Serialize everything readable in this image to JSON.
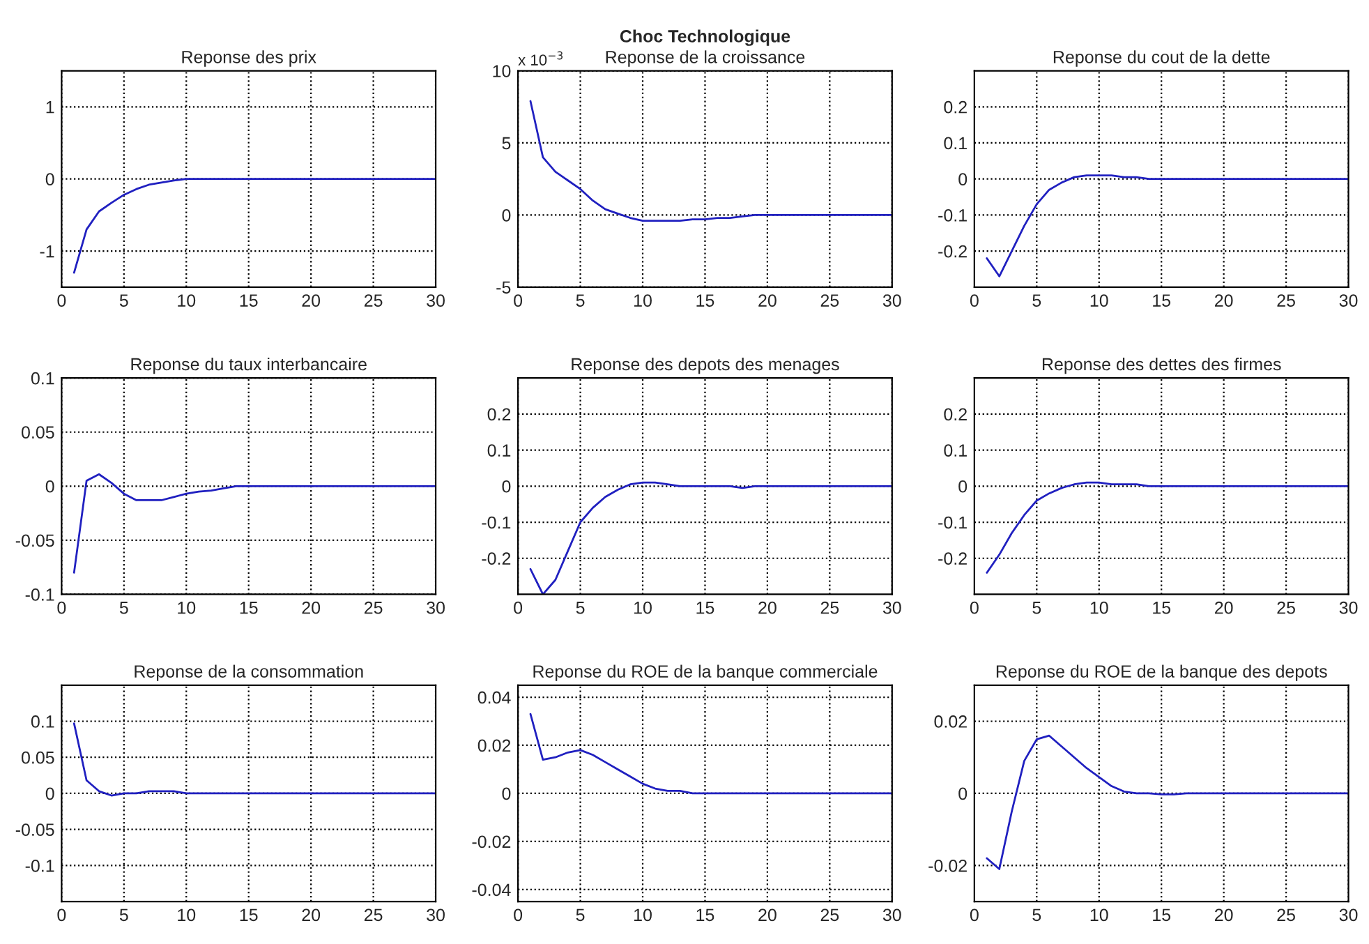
{
  "chart_data": [
    {
      "type": "line",
      "title": "Reponse des prix",
      "x": [
        1,
        2,
        3,
        4,
        5,
        6,
        7,
        8,
        9,
        10,
        11,
        12,
        13,
        14,
        15,
        16,
        17,
        18,
        19,
        20,
        21,
        22,
        23,
        24,
        25,
        26,
        27,
        28,
        29,
        30
      ],
      "series": [
        {
          "color": "#2020c0",
          "values": [
            -1.3,
            -0.7,
            -0.45,
            -0.33,
            -0.22,
            -0.14,
            -0.08,
            -0.05,
            -0.02,
            0,
            0,
            0,
            0,
            0,
            0,
            0,
            0,
            0,
            0,
            0,
            0,
            0,
            0,
            0,
            0,
            0,
            0,
            0,
            0,
            0
          ]
        }
      ],
      "xlim": [
        0,
        30
      ],
      "xticks": [
        0,
        5,
        10,
        15,
        20,
        25,
        30
      ],
      "ylim": [
        -1.5,
        1.5
      ],
      "yticks": [
        -1,
        0,
        1
      ],
      "grid": true,
      "line_style": "solid"
    },
    {
      "type": "line",
      "title": "Choc Technologique",
      "subtitle": "Reponse de la croissance",
      "annotations": [
        "x 10$^{−3}$"
      ],
      "x": [
        1,
        2,
        3,
        4,
        5,
        6,
        7,
        8,
        9,
        10,
        11,
        12,
        13,
        14,
        15,
        16,
        17,
        18,
        19,
        20,
        21,
        22,
        23,
        24,
        25,
        26,
        27,
        28,
        29,
        30
      ],
      "series": [
        {
          "color": "#2020c0",
          "values": [
            7.9,
            4,
            3,
            2.4,
            1.8,
            1,
            0.4,
            0.1,
            -0.2,
            -0.4,
            -0.4,
            -0.4,
            -0.4,
            -0.3,
            -0.3,
            -0.2,
            -0.2,
            -0.1,
            0,
            0,
            0,
            0,
            0,
            0,
            0,
            0,
            0,
            0,
            0,
            0
          ]
        }
      ],
      "xlim": [
        0,
        30
      ],
      "xticks": [
        0,
        5,
        10,
        15,
        20,
        25,
        30
      ],
      "ylim": [
        -5,
        10
      ],
      "yticks": [
        -5,
        0,
        5,
        10
      ],
      "grid": true,
      "line_style": "solid"
    },
    {
      "type": "line",
      "title": "Reponse du cout de la dette",
      "x": [
        1,
        2,
        3,
        4,
        5,
        6,
        7,
        8,
        9,
        10,
        11,
        12,
        13,
        14,
        15,
        16,
        17,
        18,
        19,
        20,
        21,
        22,
        23,
        24,
        25,
        26,
        27,
        28,
        29,
        30
      ],
      "series": [
        {
          "color": "#2020c0",
          "values": [
            -0.22,
            -0.27,
            -0.2,
            -0.13,
            -0.07,
            -0.03,
            -0.01,
            0.005,
            0.01,
            0.01,
            0.01,
            0.005,
            0.005,
            0,
            0,
            0,
            0,
            0,
            0,
            0,
            0,
            0,
            0,
            0,
            0,
            0,
            0,
            0,
            0,
            0
          ]
        }
      ],
      "xlim": [
        0,
        30
      ],
      "xticks": [
        0,
        5,
        10,
        15,
        20,
        25,
        30
      ],
      "ylim": [
        -0.3,
        0.3
      ],
      "yticks": [
        -0.2,
        -0.1,
        0,
        0.1,
        0.2
      ],
      "grid": true,
      "line_style": "solid"
    },
    {
      "type": "line",
      "title": "Reponse du taux interbancaire",
      "x": [
        1,
        2,
        3,
        4,
        5,
        6,
        7,
        8,
        9,
        10,
        11,
        12,
        13,
        14,
        15,
        16,
        17,
        18,
        19,
        20,
        21,
        22,
        23,
        24,
        25,
        26,
        27,
        28,
        29,
        30
      ],
      "series": [
        {
          "color": "#2020c0",
          "values": [
            -0.08,
            0.005,
            0.011,
            0.003,
            -0.007,
            -0.013,
            -0.013,
            -0.013,
            -0.01,
            -0.007,
            -0.005,
            -0.004,
            -0.002,
            0,
            0,
            0,
            0,
            0,
            0,
            0,
            0,
            0,
            0,
            0,
            0,
            0,
            0,
            0,
            0,
            0
          ]
        }
      ],
      "xlim": [
        0,
        30
      ],
      "xticks": [
        0,
        5,
        10,
        15,
        20,
        25,
        30
      ],
      "ylim": [
        -0.1,
        0.1
      ],
      "yticks": [
        -0.1,
        -0.05,
        0,
        0.05,
        0.1
      ],
      "grid": true,
      "line_style": "solid"
    },
    {
      "type": "line",
      "title": "Reponse des depots des menages",
      "x": [
        1,
        2,
        3,
        4,
        5,
        6,
        7,
        8,
        9,
        10,
        11,
        12,
        13,
        14,
        15,
        16,
        17,
        18,
        19,
        20,
        21,
        22,
        23,
        24,
        25,
        26,
        27,
        28,
        29,
        30
      ],
      "series": [
        {
          "color": "#2020c0",
          "values": [
            -0.23,
            -0.3,
            -0.26,
            -0.18,
            -0.1,
            -0.06,
            -0.03,
            -0.01,
            0.005,
            0.01,
            0.01,
            0.005,
            0,
            0,
            0,
            0,
            0,
            -0.005,
            0,
            0,
            0,
            0,
            0,
            0,
            0,
            0,
            0,
            0,
            0,
            0
          ]
        }
      ],
      "xlim": [
        0,
        30
      ],
      "xticks": [
        0,
        5,
        10,
        15,
        20,
        25,
        30
      ],
      "ylim": [
        -0.3,
        0.3
      ],
      "yticks": [
        -0.2,
        -0.1,
        0,
        0.1,
        0.2
      ],
      "grid": true,
      "line_style": "solid"
    },
    {
      "type": "line",
      "title": "Reponse des dettes des firmes",
      "x": [
        1,
        2,
        3,
        4,
        5,
        6,
        7,
        8,
        9,
        10,
        11,
        12,
        13,
        14,
        15,
        16,
        17,
        18,
        19,
        20,
        21,
        22,
        23,
        24,
        25,
        26,
        27,
        28,
        29,
        30
      ],
      "series": [
        {
          "color": "#2020c0",
          "values": [
            -0.24,
            -0.19,
            -0.13,
            -0.08,
            -0.04,
            -0.02,
            -0.005,
            0.005,
            0.01,
            0.01,
            0.005,
            0.005,
            0.005,
            0,
            0,
            0,
            0,
            0,
            0,
            0,
            0,
            0,
            0,
            0,
            0,
            0,
            0,
            0,
            0,
            0
          ]
        }
      ],
      "xlim": [
        0,
        30
      ],
      "xticks": [
        0,
        5,
        10,
        15,
        20,
        25,
        30
      ],
      "ylim": [
        -0.3,
        0.3
      ],
      "yticks": [
        -0.2,
        -0.1,
        0,
        0.1,
        0.2
      ],
      "grid": true,
      "line_style": "solid"
    },
    {
      "type": "line",
      "title": "Reponse de la consommation",
      "x": [
        1,
        2,
        3,
        4,
        5,
        6,
        7,
        8,
        9,
        10,
        11,
        12,
        13,
        14,
        15,
        16,
        17,
        18,
        19,
        20,
        21,
        22,
        23,
        24,
        25,
        26,
        27,
        28,
        29,
        30
      ],
      "series": [
        {
          "color": "#2020c0",
          "values": [
            0.097,
            0.018,
            0.003,
            -0.003,
            0,
            0,
            0.003,
            0.003,
            0.003,
            0,
            0,
            0,
            0,
            0,
            0,
            0,
            0,
            0,
            0,
            0,
            0,
            0,
            0,
            0,
            0,
            0,
            0,
            0,
            0,
            0
          ]
        }
      ],
      "xlim": [
        0,
        30
      ],
      "xticks": [
        0,
        5,
        10,
        15,
        20,
        25,
        30
      ],
      "ylim": [
        -0.15,
        0.15
      ],
      "yticks": [
        -0.1,
        -0.05,
        0,
        0.05,
        0.1
      ],
      "grid": true,
      "line_style": "solid"
    },
    {
      "type": "line",
      "title": "Reponse du ROE de la banque commerciale",
      "x": [
        1,
        2,
        3,
        4,
        5,
        6,
        7,
        8,
        9,
        10,
        11,
        12,
        13,
        14,
        15,
        16,
        17,
        18,
        19,
        20,
        21,
        22,
        23,
        24,
        25,
        26,
        27,
        28,
        29,
        30
      ],
      "series": [
        {
          "color": "#2020c0",
          "values": [
            0.033,
            0.014,
            0.015,
            0.017,
            0.018,
            0.016,
            0.013,
            0.01,
            0.007,
            0.004,
            0.002,
            0.001,
            0.001,
            0,
            0,
            0,
            0,
            0,
            0,
            0,
            0,
            0,
            0,
            0,
            0,
            0,
            0,
            0,
            0,
            0
          ]
        }
      ],
      "xlim": [
        0,
        30
      ],
      "xticks": [
        0,
        5,
        10,
        15,
        20,
        25,
        30
      ],
      "ylim": [
        -0.045,
        0.045
      ],
      "yticks": [
        -0.04,
        -0.02,
        0,
        0.02,
        0.04
      ],
      "grid": true,
      "line_style": "solid"
    },
    {
      "type": "line",
      "title": "Reponse du ROE de la banque des depots",
      "x": [
        1,
        2,
        3,
        4,
        5,
        6,
        7,
        8,
        9,
        10,
        11,
        12,
        13,
        14,
        15,
        16,
        17,
        18,
        19,
        20,
        21,
        22,
        23,
        24,
        25,
        26,
        27,
        28,
        29,
        30
      ],
      "series": [
        {
          "color": "#2020c0",
          "values": [
            -0.018,
            -0.021,
            -0.005,
            0.009,
            0.015,
            0.016,
            0.013,
            0.01,
            0.007,
            0.0045,
            0.002,
            0.0005,
            0,
            0,
            -0.0003,
            -0.0003,
            0,
            0,
            0,
            0,
            0,
            0,
            0,
            0,
            0,
            0,
            0,
            0,
            0,
            0
          ]
        }
      ],
      "xlim": [
        0,
        30
      ],
      "xticks": [
        0,
        5,
        10,
        15,
        20,
        25,
        30
      ],
      "ylim": [
        -0.03,
        0.03
      ],
      "yticks": [
        -0.02,
        0,
        0.02
      ],
      "grid": true,
      "line_style": "solid"
    }
  ]
}
